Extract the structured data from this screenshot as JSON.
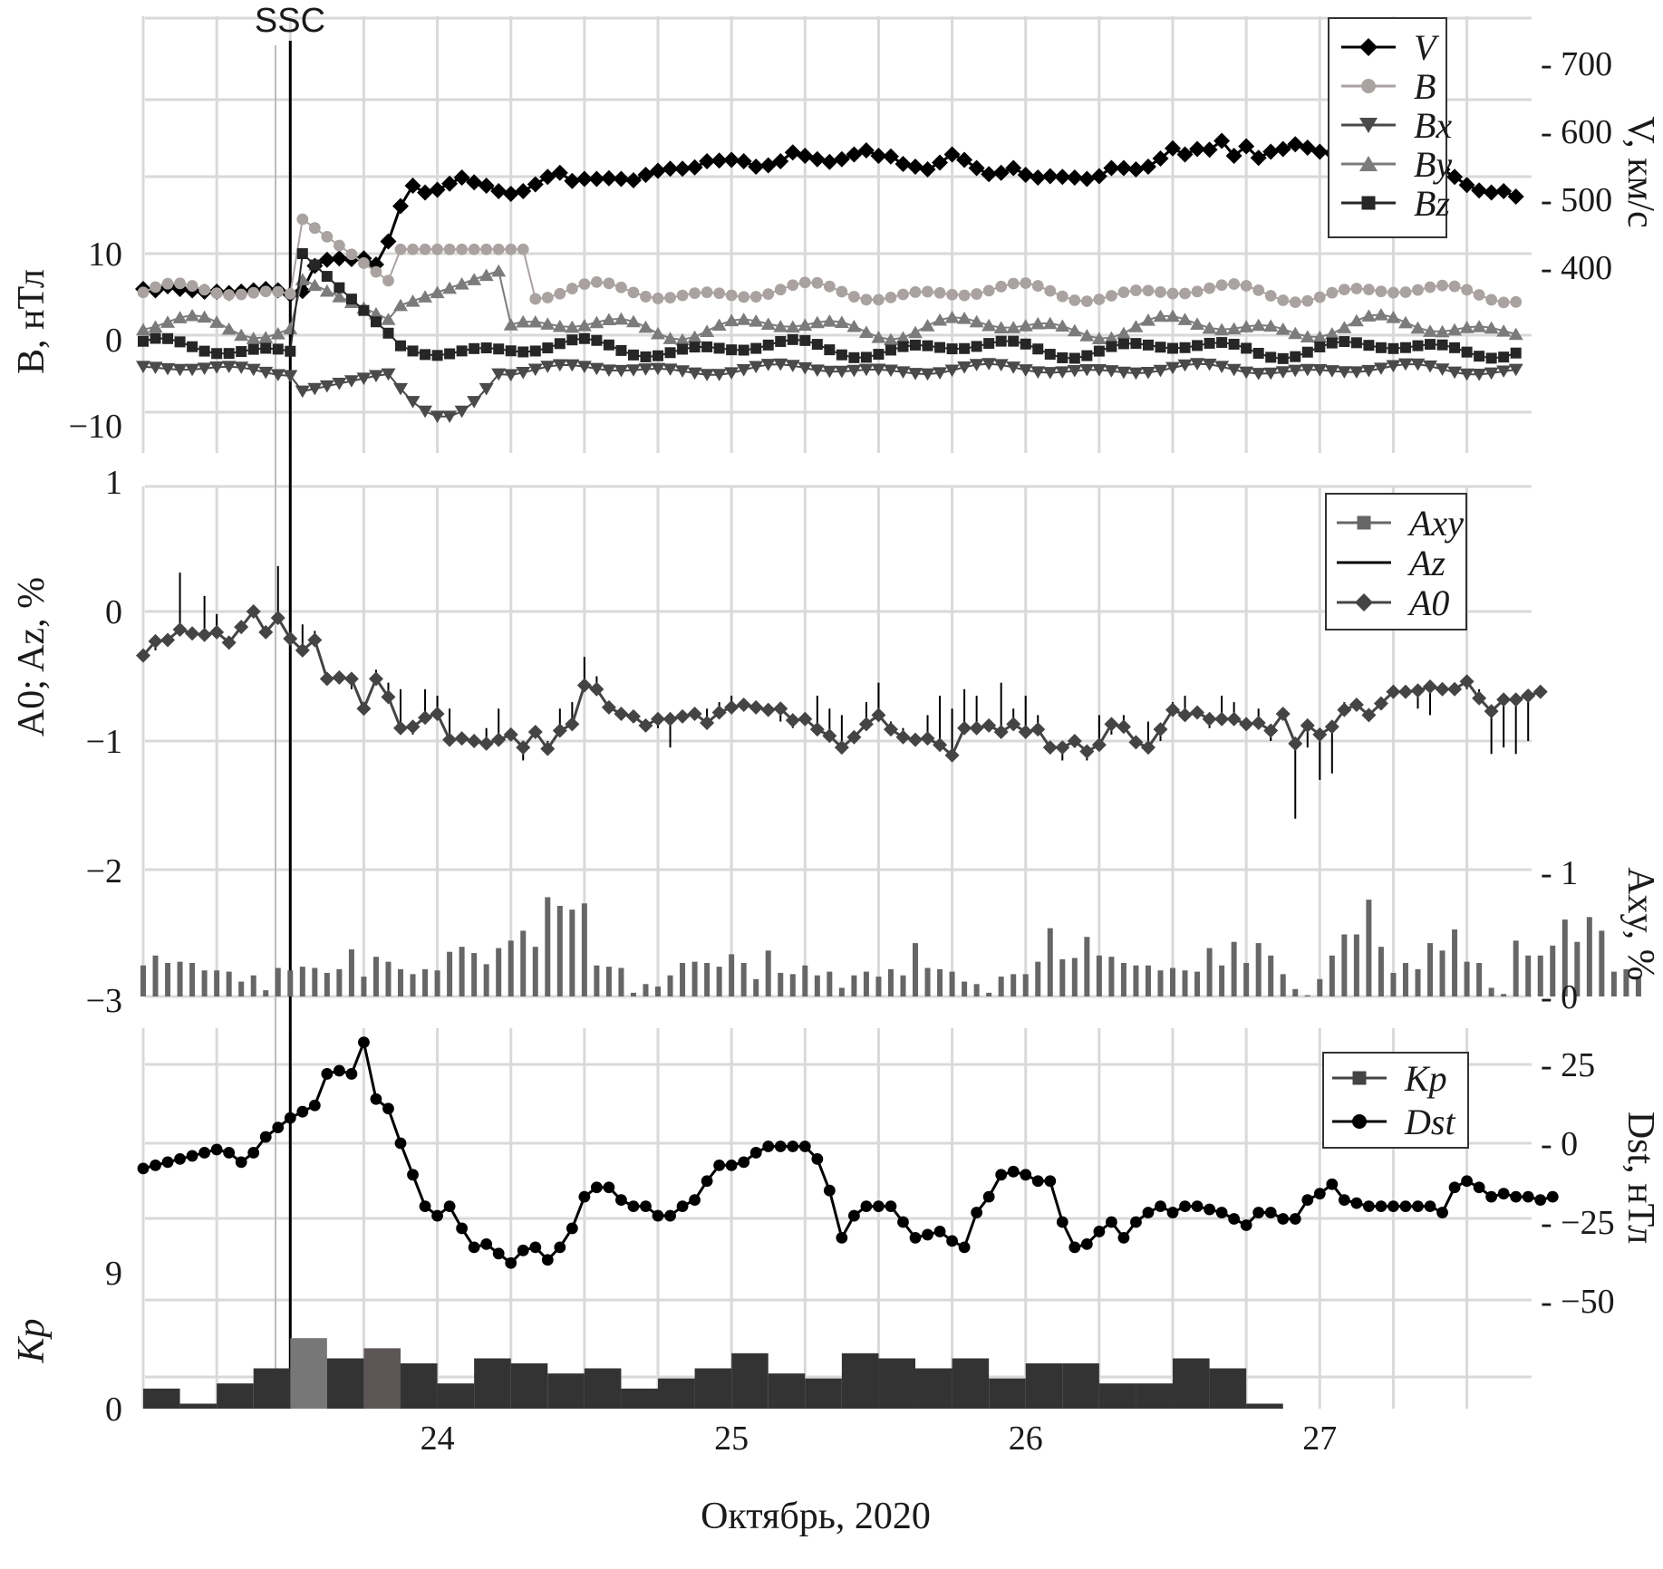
{
  "chart_data": [
    {
      "panel": "top",
      "type": "line",
      "left_axis": {
        "label": "B, нТл",
        "ylim": [
          -13,
          27
        ],
        "ticks": [
          "10",
          "0",
          "−10"
        ],
        "tick_values": [
          10,
          0,
          -10
        ]
      },
      "right_axis": {
        "label": "V, км/с",
        "ylim": [
          270,
          770
        ],
        "ticks": [
          "400",
          "500",
          "600",
          "700"
        ],
        "tick_values": [
          400,
          500,
          600,
          700
        ]
      },
      "x": {
        "start_day": 23.0,
        "end_day": 27.72,
        "step_hours": 1
      },
      "grid": true,
      "legend_position": "top-right",
      "marker_text": "SSC",
      "legend": [
        {
          "name": "V",
          "marker": "diamond",
          "color": "#000000"
        },
        {
          "name": "B",
          "marker": "circle",
          "color": "#a9a2a0"
        },
        {
          "name": "Bx",
          "marker": "triangle-down",
          "color": "#4a4a4a"
        },
        {
          "name": "By",
          "marker": "triangle-up",
          "color": "#7b7b7b"
        },
        {
          "name": "Bz",
          "marker": "square",
          "color": "#262626"
        }
      ],
      "series": [
        {
          "name": "V",
          "axis": "right",
          "color": "#000000",
          "values": [
            368,
            366,
            372,
            368,
            366,
            364,
            364,
            362,
            364,
            366,
            368,
            366,
            360,
            365,
            402,
            411,
            413,
            412,
            413,
            404,
            438,
            490,
            520,
            510,
            514,
            523,
            532,
            525,
            520,
            512,
            508,
            512,
            522,
            533,
            539,
            527,
            530,
            530,
            531,
            530,
            528,
            536,
            542,
            545,
            545,
            547,
            556,
            557,
            558,
            556,
            548,
            550,
            556,
            569,
            564,
            559,
            555,
            559,
            566,
            572,
            564,
            563,
            552,
            548,
            544,
            554,
            566,
            558,
            546,
            537,
            539,
            546,
            536,
            532,
            534,
            533,
            532,
            530,
            534,
            546,
            546,
            544,
            548,
            560,
            575,
            566,
            574,
            573,
            586,
            564,
            578,
            561,
            570,
            574,
            581,
            576,
            570,
            568,
            561,
            572,
            579,
            589,
            582,
            573,
            557,
            547,
            544,
            533,
            521,
            513,
            510,
            512,
            504
          ]
        }
      ]
    },
    {
      "panel": "middle",
      "type": "line",
      "left_axis": {
        "label": "A0; Az, %",
        "ylim": [
          -3,
          1
        ],
        "ticks": [
          "1",
          "0",
          "−1",
          "−2",
          "−3"
        ],
        "tick_values": [
          1,
          0,
          -1,
          -2,
          -3
        ]
      },
      "right_axis": {
        "label": "Axy, %",
        "ylim": [
          0,
          1
        ],
        "ticks": [
          "1",
          "0"
        ],
        "tick_values": [
          1,
          0
        ]
      },
      "x": {
        "start_day": 23.0,
        "end_day": 27.72,
        "step_hours": 1
      },
      "grid": true,
      "legend_position": "top-right",
      "legend": [
        {
          "name": "Axy",
          "marker": "square",
          "color": "#666666"
        },
        {
          "name": "Az",
          "marker": "line",
          "color": "#000000"
        },
        {
          "name": "A0",
          "marker": "diamond",
          "color": "#444444"
        }
      ],
      "series": [
        {
          "name": "A0",
          "color": "#444444",
          "values": [
            -0.34,
            -0.23,
            -0.22,
            -0.14,
            -0.17,
            -0.18,
            -0.16,
            -0.24,
            -0.12,
            0.0,
            -0.16,
            -0.05,
            -0.21,
            -0.3,
            -0.22,
            -0.52,
            -0.51,
            -0.52,
            -0.75,
            -0.52,
            -0.66,
            -0.9,
            -0.89,
            -0.82,
            -0.79,
            -0.99,
            -0.98,
            -1.0,
            -1.02,
            -0.99,
            -0.95,
            -1.05,
            -0.93,
            -1.06,
            -0.92,
            -0.87,
            -0.57,
            -0.6,
            -0.74,
            -0.79,
            -0.81,
            -0.88,
            -0.83,
            -0.83,
            -0.81,
            -0.79,
            -0.86,
            -0.78,
            -0.74,
            -0.72,
            -0.74,
            -0.76,
            -0.75,
            -0.84,
            -0.83,
            -0.91,
            -0.96,
            -1.05,
            -0.97,
            -0.87,
            -0.8,
            -0.91,
            -0.97,
            -0.99,
            -0.98,
            -1.03,
            -1.11,
            -0.9,
            -0.9,
            -0.88,
            -0.93,
            -0.87,
            -0.93,
            -0.91,
            -1.05,
            -1.05,
            -1.0,
            -1.08,
            -1.03,
            -0.87,
            -0.89,
            -1.01,
            -1.05,
            -0.91,
            -0.76,
            -0.8,
            -0.78,
            -0.83,
            -0.83,
            -0.83,
            -0.87,
            -0.86,
            -0.92,
            -0.79,
            -1.02,
            -0.88,
            -0.95,
            -0.89,
            -0.76,
            -0.72,
            -0.8,
            -0.71,
            -0.62,
            -0.62,
            -0.61,
            -0.58,
            -0.6,
            -0.6,
            -0.54,
            -0.67,
            -0.77,
            -0.68,
            -0.68,
            -0.65,
            -0.62
          ]
        },
        {
          "name": "Az",
          "color": "#000000",
          "values": [
            -0.35,
            -0.3,
            -0.25,
            0.3,
            -0.2,
            0.12,
            -0.02,
            -0.25,
            -0.1,
            -0.05,
            -0.2,
            0.35,
            -0.25,
            -0.1,
            -0.15,
            -0.5,
            -0.55,
            -0.6,
            -0.7,
            -0.45,
            -0.55,
            -0.6,
            -0.95,
            -0.6,
            -0.65,
            -0.75,
            -0.95,
            -0.95,
            -0.9,
            -0.75,
            -1.0,
            -1.15,
            -0.9,
            -1.0,
            -0.75,
            -0.7,
            -0.35,
            -0.5,
            -0.7,
            -0.8,
            -0.82,
            -0.9,
            -0.9,
            -1.05,
            -0.8,
            -0.77,
            -0.75,
            -0.7,
            -0.65,
            -0.72,
            -0.7,
            -0.8,
            -0.85,
            -0.9,
            -0.85,
            -0.65,
            -0.75,
            -0.8,
            -0.95,
            -0.7,
            -0.55,
            -0.85,
            -0.9,
            -0.95,
            -0.8,
            -0.65,
            -0.75,
            -0.6,
            -0.65,
            -0.85,
            -0.55,
            -0.75,
            -0.65,
            -0.8,
            -1.0,
            -1.15,
            -1.0,
            -1.15,
            -0.8,
            -0.95,
            -0.8,
            -1.0,
            -0.85,
            -1.0,
            -0.7,
            -0.65,
            -0.75,
            -0.9,
            -0.65,
            -0.7,
            -0.85,
            -0.75,
            -1.0,
            -0.75,
            -1.6,
            -1.05,
            -1.3,
            -1.25,
            -0.7,
            -0.75,
            -0.85,
            -0.7,
            -0.6,
            -0.65,
            -0.75,
            -0.8,
            -0.6,
            -0.55,
            -0.6,
            -0.6,
            -1.1,
            -1.05,
            -1.1,
            -1.0,
            -0.6
          ]
        },
        {
          "name": "Axy",
          "axis": "right",
          "color": "#666666",
          "values": [
            0.25,
            0.33,
            0.27,
            0.28,
            0.27,
            0.21,
            0.21,
            0.2,
            0.12,
            0.17,
            0.05,
            0.23,
            0.21,
            0.24,
            0.23,
            0.19,
            0.22,
            0.38,
            0.16,
            0.32,
            0.28,
            0.22,
            0.18,
            0.22,
            0.21,
            0.36,
            0.4,
            0.35,
            0.26,
            0.39,
            0.45,
            0.53,
            0.4,
            0.8,
            0.73,
            0.7,
            0.75,
            0.25,
            0.24,
            0.23,
            0.03,
            0.1,
            0.08,
            0.17,
            0.27,
            0.28,
            0.27,
            0.24,
            0.34,
            0.27,
            0.14,
            0.37,
            0.19,
            0.18,
            0.25,
            0.17,
            0.2,
            0.07,
            0.17,
            0.2,
            0.16,
            0.22,
            0.17,
            0.43,
            0.23,
            0.22,
            0.2,
            0.12,
            0.1,
            0.03,
            0.16,
            0.18,
            0.18,
            0.28,
            0.55,
            0.3,
            0.31,
            0.48,
            0.33,
            0.32,
            0.27,
            0.25,
            0.25,
            0.21,
            0.23,
            0.21,
            0.2,
            0.39,
            0.25,
            0.44,
            0.27,
            0.43,
            0.33,
            0.18,
            0.06,
            0.01,
            0.14,
            0.33,
            0.5,
            0.5,
            0.78,
            0.4,
            0.19,
            0.27,
            0.22,
            0.43,
            0.37,
            0.54,
            0.28,
            0.27,
            0.07,
            0.02,
            0.45,
            0.33,
            0.33,
            0.41,
            0.62,
            0.44,
            0.64,
            0.53,
            0.2,
            0.22,
            0.15
          ]
        }
      ]
    },
    {
      "panel": "bottom",
      "type": "line",
      "left_axis": {
        "label": "Kp",
        "ylim": [
          0,
          45
        ],
        "ticks": [
          "9",
          "0"
        ],
        "tick_values": [
          9,
          0
        ]
      },
      "right_axis": {
        "label": "Dst, нТл",
        "ylim": [
          -70,
          40
        ],
        "ticks": [
          "25",
          "0",
          "−25",
          "−50"
        ],
        "tick_values": [
          25,
          0,
          -25,
          -50
        ]
      },
      "x": {
        "label": "Октябрь, 2020",
        "ticks": [
          "24",
          "25",
          "26",
          "27"
        ],
        "tick_values": [
          24,
          25,
          26,
          27
        ],
        "xlim": [
          22.995,
          27.72
        ]
      },
      "grid": true,
      "legend_position": "top-right",
      "legend": [
        {
          "name": "Kp",
          "marker": "square",
          "color": "#444444"
        },
        {
          "name": "Dst",
          "marker": "circle",
          "color": "#000000"
        }
      ],
      "series": [
        {
          "name": "Dst",
          "color": "#000000",
          "values": [
            -8,
            -7,
            -6,
            -5,
            -4,
            -3,
            -2,
            -3,
            -6,
            -3,
            2,
            5,
            8,
            10,
            12,
            22,
            23,
            22,
            32,
            14,
            11,
            0,
            -10,
            -20,
            -23,
            -20,
            -27,
            -33,
            -32,
            -35,
            -38,
            -34,
            -33,
            -37,
            -33,
            -27,
            -17,
            -14,
            -14,
            -18,
            -20,
            -20,
            -23,
            -23,
            -20,
            -18,
            -12,
            -7,
            -7,
            -6,
            -3,
            -1,
            -1,
            -1,
            -1,
            -5,
            -15,
            -30,
            -23,
            -20,
            -20,
            -20,
            -25,
            -30,
            -29,
            -28,
            -31,
            -33,
            -22,
            -17,
            -10,
            -9,
            -10,
            -12,
            -12,
            -25,
            -33,
            -32,
            -28,
            -25,
            -30,
            -25,
            -22,
            -20,
            -22,
            -20,
            -20,
            -21,
            -22,
            -24,
            -26,
            -22,
            -22,
            -24,
            -24,
            -18,
            -16,
            -13,
            -18,
            -19,
            -20,
            -20,
            -20,
            -20,
            -20,
            -20,
            -22,
            -14,
            -12,
            -14,
            -17,
            -16,
            -17,
            -17,
            -18,
            -17
          ]
        },
        {
          "name": "Kp",
          "type": "bar",
          "color": "#333333",
          "values": [
            1.33,
            0.33,
            1.67,
            2.67,
            4.67,
            3.33,
            4.0,
            3.0,
            1.67,
            3.33,
            3.0,
            2.33,
            2.67,
            1.33,
            2.0,
            2.67,
            3.67,
            2.33,
            2.0,
            3.67,
            3.33,
            2.67,
            3.33,
            2.0,
            3.0,
            3.0,
            1.67,
            1.67,
            3.33,
            2.67,
            0.33
          ]
        }
      ]
    }
  ]
}
